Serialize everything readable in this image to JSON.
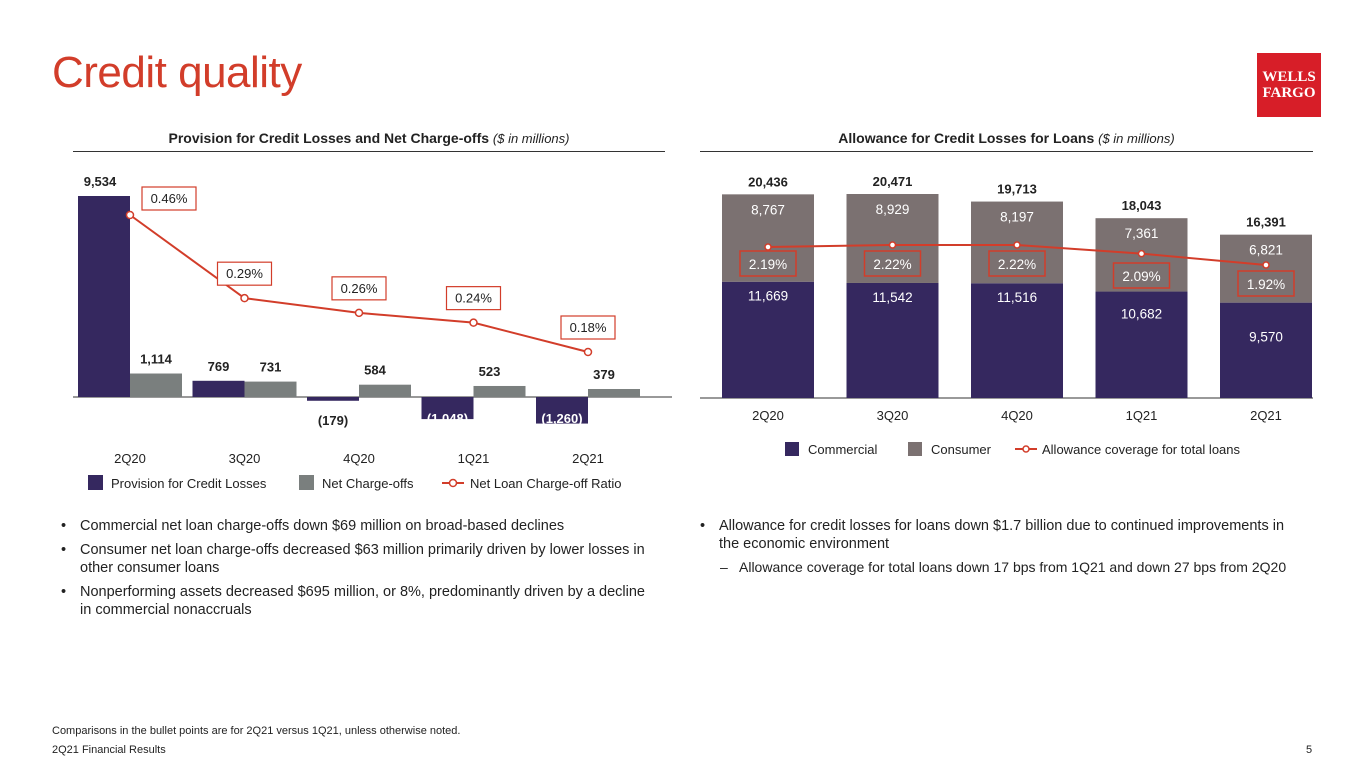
{
  "page": {
    "title": "Credit quality",
    "logo_line1": "WELLS",
    "logo_line2": "FARGO",
    "footnote": "Comparisons in the bullet points are for 2Q21 versus 1Q21, unless otherwise noted.",
    "footer": "2Q21 Financial Results",
    "page_number": "5"
  },
  "left_panel": {
    "heading": "Provision for Credit Losses and Net Charge-offs",
    "heading_note": "($ in millions)",
    "bullets": [
      "Commercial net loan charge-offs down $69 million on broad-based declines",
      "Consumer net loan charge-offs decreased $63 million primarily driven by lower losses in other consumer loans",
      "Nonperforming assets decreased $695 million, or 8%, predominantly driven by a decline in commercial nonaccruals"
    ]
  },
  "right_panel": {
    "heading": "Allowance for Credit Losses for Loans",
    "heading_note": "($ in millions)",
    "bullets": [
      "Allowance for credit losses for loans down $1.7 billion due to continued improvements in the economic environment"
    ],
    "sub_bullet": "Allowance coverage for total loans down 17 bps from 1Q21 and down 27 bps from 2Q20"
  },
  "colors": {
    "navy": "#35285f",
    "gray": "#7a7f7e",
    "taupe": "#7b7171",
    "red": "#d23d2a"
  },
  "chart_data": [
    {
      "type": "bar",
      "title": "Provision for Credit Losses and Net Charge-offs",
      "categories": [
        "2Q20",
        "3Q20",
        "4Q20",
        "1Q21",
        "2Q21"
      ],
      "series": [
        {
          "name": "Provision for Credit Losses",
          "values": [
            9534,
            769,
            -179,
            -1048,
            -1260
          ],
          "labels": [
            "9,534",
            "769",
            "(179)",
            "(1,048)",
            "(1,260)"
          ]
        },
        {
          "name": "Net Charge-offs",
          "values": [
            1114,
            731,
            584,
            523,
            379
          ],
          "labels": [
            "1,114",
            "731",
            "584",
            "523",
            "379"
          ]
        }
      ],
      "line": {
        "name": "Net Loan Charge-off Ratio",
        "values": [
          0.46,
          0.29,
          0.26,
          0.24,
          0.18
        ],
        "labels": [
          "0.46%",
          "0.29%",
          "0.26%",
          "0.24%",
          "0.18%"
        ]
      },
      "ylim": [
        -1260,
        9534
      ]
    },
    {
      "type": "bar",
      "stacked": true,
      "title": "Allowance for Credit Losses for Loans",
      "categories": [
        "2Q20",
        "3Q20",
        "4Q20",
        "1Q21",
        "2Q21"
      ],
      "series": [
        {
          "name": "Commercial",
          "values": [
            11669,
            11542,
            11516,
            10682,
            9570
          ],
          "labels": [
            "11,669",
            "11,542",
            "11,516",
            "10,682",
            "9,570"
          ]
        },
        {
          "name": "Consumer",
          "values": [
            8767,
            8929,
            8197,
            7361,
            6821
          ],
          "labels": [
            "8,767",
            "8,929",
            "8,197",
            "7,361",
            "6,821"
          ]
        }
      ],
      "totals": [
        "20,436",
        "20,471",
        "19,713",
        "18,043",
        "16,391"
      ],
      "line": {
        "name": "Allowance coverage for total loans",
        "values": [
          2.19,
          2.22,
          2.22,
          2.09,
          1.92
        ],
        "labels": [
          "2.19%",
          "2.22%",
          "2.22%",
          "2.09%",
          "1.92%"
        ]
      },
      "ylim": [
        0,
        20471
      ]
    }
  ]
}
